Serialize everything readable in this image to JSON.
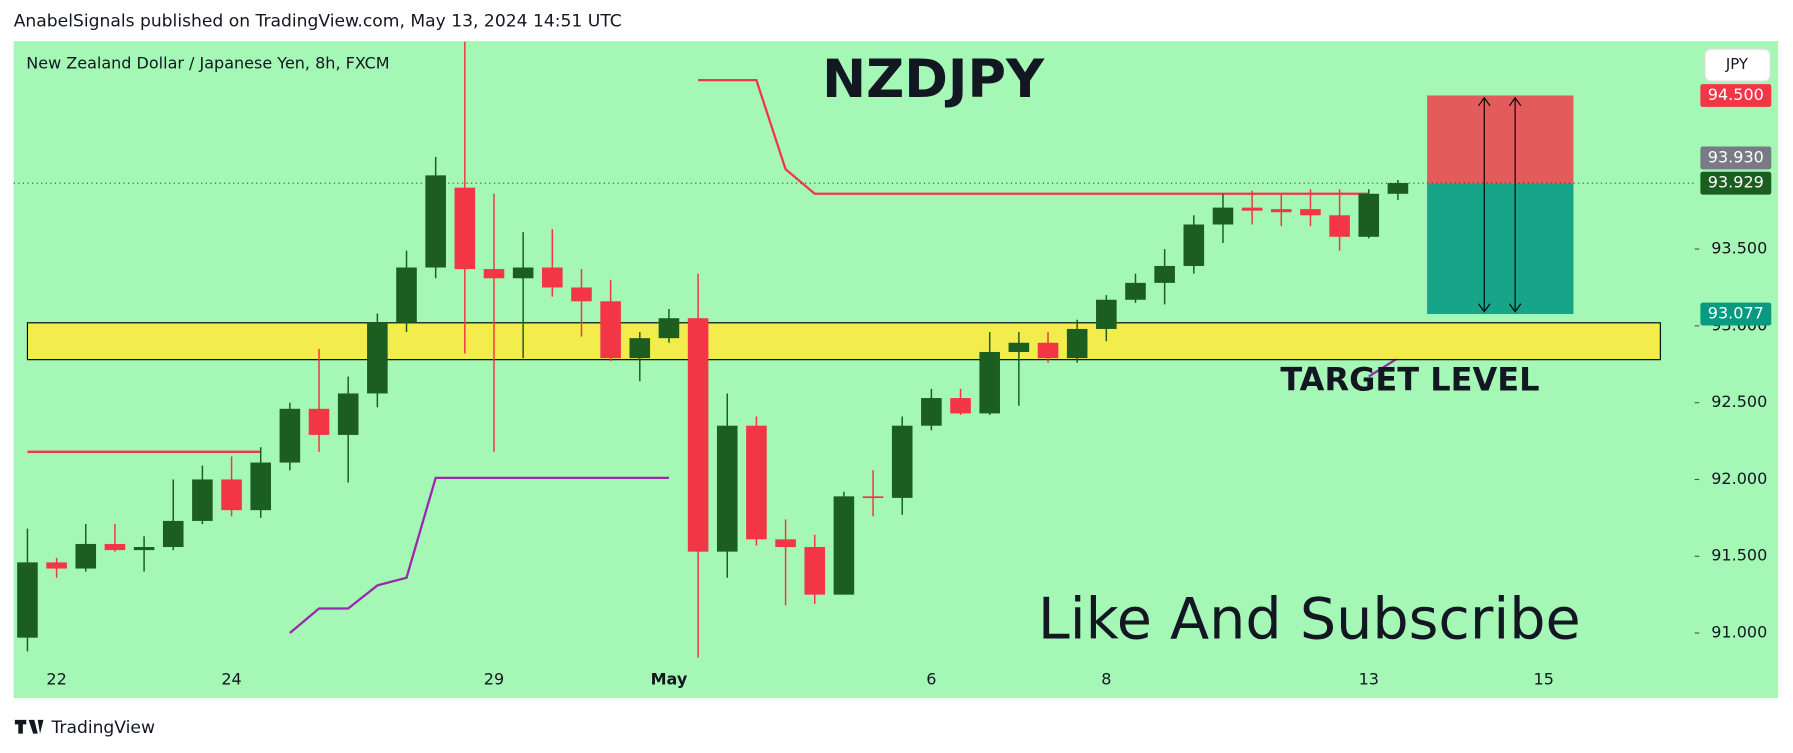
{
  "header": "AnabelSignals published on TradingView.com, May 13, 2024 14:51 UTC",
  "footer": "TradingView",
  "currency_button": "JPY",
  "chart_data": {
    "type": "candlestick",
    "title": "NZDJPY",
    "subtitle": "New Zealand Dollar / Japanese Yen, 8h, FXCM",
    "annotation": "Like And Subscribe",
    "categories": [
      null,
      "22",
      null,
      null,
      null,
      null,
      null,
      "24",
      null,
      null,
      null,
      null,
      null,
      null,
      null,
      null,
      "29",
      null,
      null,
      null,
      null,
      null,
      "May",
      null,
      null,
      null,
      null,
      null,
      null,
      null,
      null,
      "6",
      null,
      null,
      null,
      null,
      null,
      "8",
      null,
      null,
      null,
      null,
      null,
      null,
      null,
      null,
      "13",
      null,
      null,
      null,
      null,
      null,
      "15",
      null,
      null,
      null,
      null
    ],
    "open": [
      90.97,
      91.46,
      91.42,
      91.58,
      91.54,
      91.56,
      91.73,
      92.0,
      91.8,
      92.11,
      92.46,
      92.29,
      92.56,
      93.02,
      93.38,
      93.9,
      93.37,
      93.31,
      93.38,
      93.25,
      93.16,
      92.79,
      92.92,
      93.05,
      91.53,
      92.35,
      91.61,
      91.56,
      91.25,
      91.89,
      91.88,
      92.35,
      92.53,
      92.43,
      92.83,
      92.89,
      92.79,
      92.98,
      93.17,
      93.28,
      93.39,
      93.66,
      93.77,
      93.76,
      93.76,
      93.72,
      93.58,
      93.86,
      null,
      null,
      null,
      null,
      null,
      null,
      null,
      null,
      null
    ],
    "high": [
      91.68,
      91.49,
      91.71,
      91.71,
      91.63,
      92.0,
      92.09,
      92.15,
      92.21,
      92.5,
      92.85,
      92.67,
      93.08,
      93.49,
      94.1,
      94.85,
      93.86,
      93.61,
      93.63,
      93.37,
      93.3,
      92.96,
      93.11,
      93.34,
      92.56,
      92.41,
      91.74,
      91.64,
      91.92,
      92.06,
      92.41,
      92.59,
      92.59,
      92.96,
      92.96,
      92.96,
      93.04,
      93.2,
      93.34,
      93.5,
      93.72,
      93.86,
      93.88,
      93.86,
      93.89,
      93.89,
      93.89,
      93.95,
      null,
      null,
      null,
      null,
      null,
      null,
      null,
      null,
      null
    ],
    "low": [
      90.88,
      91.36,
      91.4,
      91.53,
      91.4,
      91.54,
      91.71,
      91.76,
      91.75,
      92.06,
      92.18,
      91.98,
      92.47,
      92.96,
      93.31,
      92.82,
      92.18,
      92.79,
      93.19,
      92.93,
      92.77,
      92.64,
      92.89,
      90.84,
      91.36,
      91.57,
      91.18,
      91.19,
      91.25,
      91.76,
      91.77,
      92.32,
      92.42,
      92.42,
      92.48,
      92.76,
      92.76,
      92.9,
      93.15,
      93.14,
      93.34,
      93.54,
      93.66,
      93.65,
      93.65,
      93.49,
      93.57,
      93.82,
      null,
      null,
      null,
      null,
      null,
      null,
      null,
      null,
      null
    ],
    "close": [
      91.46,
      91.42,
      91.58,
      91.54,
      91.56,
      91.73,
      92.0,
      91.8,
      92.11,
      92.46,
      92.29,
      92.56,
      93.02,
      93.38,
      93.98,
      93.37,
      93.31,
      93.38,
      93.25,
      93.16,
      92.79,
      92.92,
      93.05,
      91.53,
      92.35,
      91.61,
      91.56,
      91.25,
      91.89,
      91.88,
      92.35,
      92.53,
      92.43,
      92.83,
      92.89,
      92.79,
      92.98,
      93.17,
      93.28,
      93.39,
      93.66,
      93.77,
      93.75,
      93.74,
      93.72,
      93.58,
      93.86,
      93.93,
      null,
      null,
      null,
      null,
      null,
      null,
      null,
      null,
      null
    ],
    "up_color": "#1b5e20",
    "down_color": "#f23645",
    "ylim": [
      90.576,
      94.854
    ],
    "yticks": [
      {
        "value": 91,
        "label": "91.000"
      },
      {
        "value": 91.5,
        "label": "91.500"
      },
      {
        "value": 92,
        "label": "92.000"
      },
      {
        "value": 92.5,
        "label": "92.500"
      },
      {
        "value": 93,
        "label": "93.000"
      },
      {
        "value": 93.5,
        "label": "93.500"
      }
    ],
    "overlays": [
      {
        "color": "#f23645",
        "values": [
          92.18,
          92.18,
          92.18,
          92.18,
          92.18,
          92.18,
          92.18,
          92.18,
          92.18,
          null,
          null,
          null,
          null,
          null,
          null,
          null,
          null,
          null,
          null,
          null,
          null,
          null,
          null,
          94.6,
          94.6,
          94.6,
          94.02,
          93.86,
          93.86,
          93.86,
          93.86,
          93.86,
          93.86,
          93.86,
          93.86,
          93.86,
          93.86,
          93.86,
          93.86,
          93.86,
          93.86,
          93.86,
          93.86,
          93.86,
          93.86,
          93.86,
          93.86,
          null,
          null,
          null,
          null,
          null,
          null,
          null,
          null,
          null,
          null,
          null
        ]
      },
      {
        "color": "#9c27b0",
        "values": [
          null,
          null,
          null,
          null,
          null,
          null,
          null,
          null,
          null,
          91.0,
          91.16,
          91.16,
          91.31,
          91.36,
          92.01,
          92.01,
          92.01,
          92.01,
          92.01,
          92.01,
          92.01,
          92.01,
          92.01,
          null,
          null,
          null,
          null,
          null,
          null,
          null,
          null,
          null,
          null,
          null,
          null,
          null,
          null,
          null,
          null,
          null,
          null,
          null,
          null,
          null,
          null,
          null,
          92.67,
          92.79,
          null,
          null,
          null,
          null,
          null,
          null,
          null,
          null,
          null
        ]
      }
    ],
    "zone": {
      "low": 92.78,
      "high": 93.02,
      "label": "TARGET LEVEL",
      "color": "#ffeb3b"
    },
    "position": {
      "stop": 94.5,
      "entry": 93.929,
      "target": 93.077
    },
    "price_labels": [
      {
        "value": 94.5,
        "label": "94.500",
        "color": "#f23645"
      },
      {
        "value": 93.929,
        "label": "93.929",
        "color": "#1b5e20"
      },
      {
        "value": 93.93,
        "label": "93.930",
        "color": "#787b86"
      },
      {
        "value": 93.077,
        "label": "93.077",
        "color": "#089981"
      }
    ]
  }
}
